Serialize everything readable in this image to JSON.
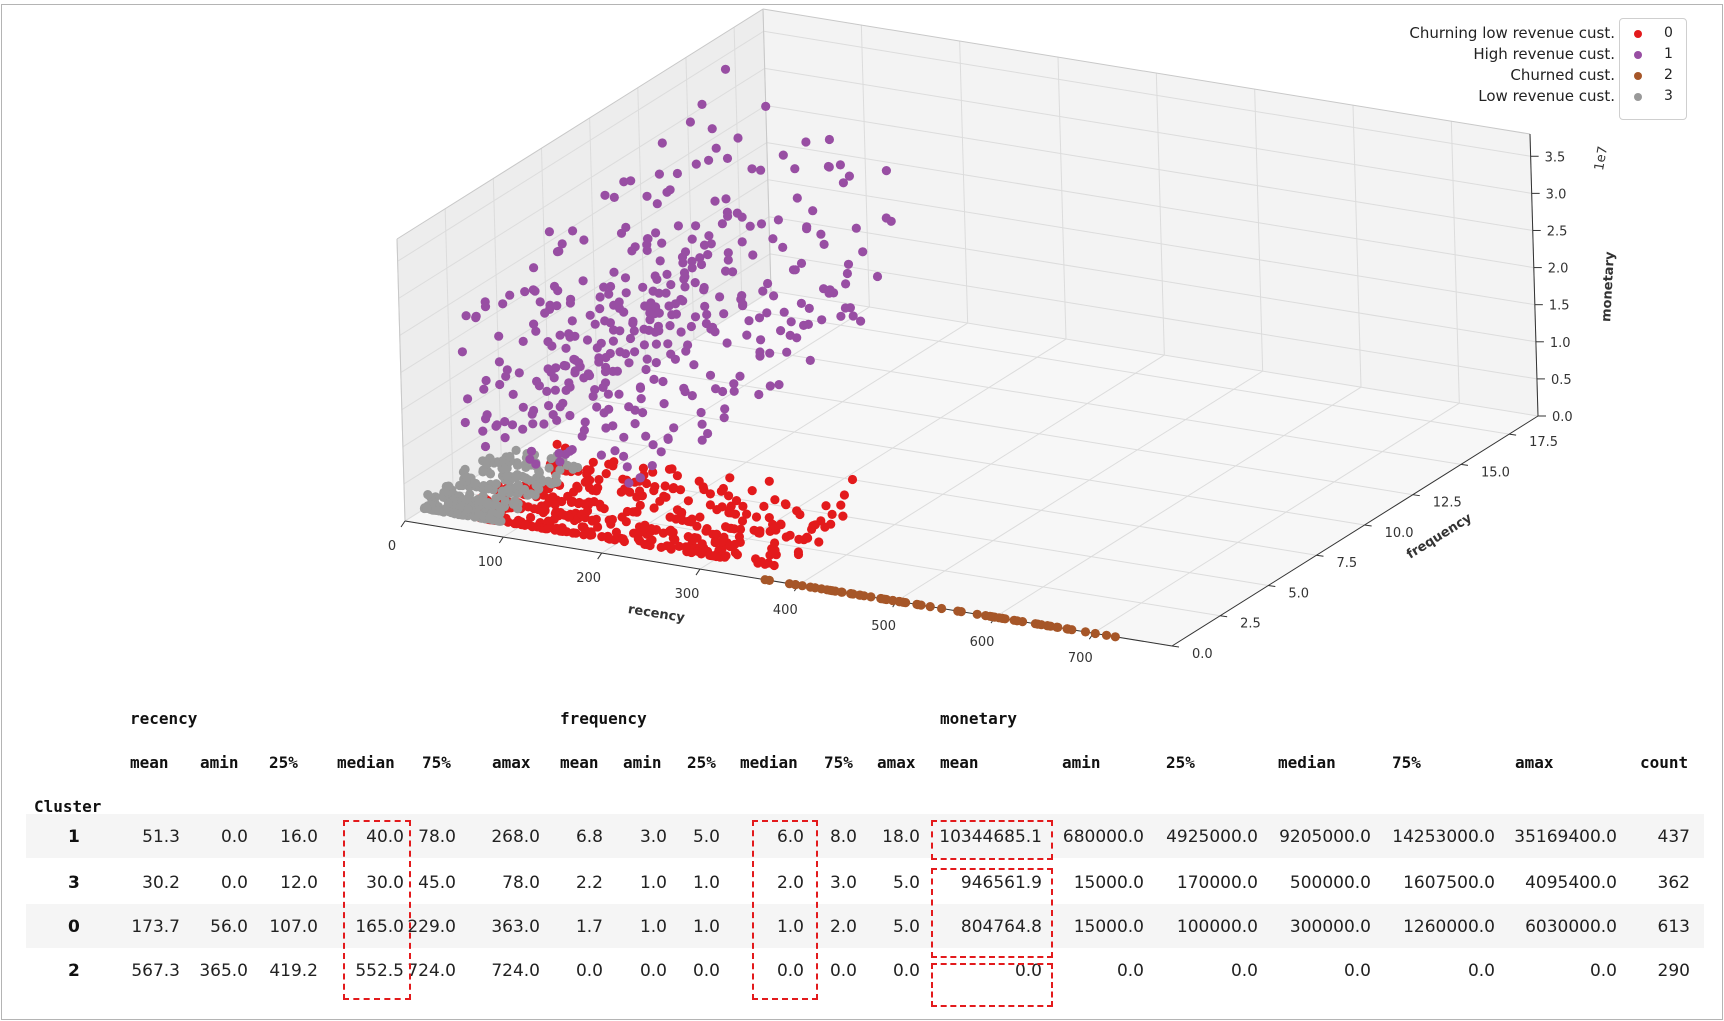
{
  "chart_data": {
    "type": "scatter",
    "projection": "3d",
    "axes": {
      "x": {
        "label": "recency",
        "ticks": [
          "0",
          "100",
          "200",
          "300",
          "400",
          "500",
          "600",
          "700"
        ],
        "range": [
          0,
          780
        ]
      },
      "y": {
        "label": "frequency",
        "ticks": [
          "0.0",
          "2.5",
          "5.0",
          "7.5",
          "10.0",
          "12.5",
          "15.0",
          "17.5"
        ],
        "range": [
          0,
          19
        ]
      },
      "z": {
        "label": "monetary",
        "ticks": [
          "0.0",
          "0.5",
          "1.0",
          "1.5",
          "2.0",
          "2.5",
          "3.0",
          "3.5"
        ],
        "range": [
          0,
          3.8
        ],
        "offset_text": "1e7"
      }
    },
    "grid": true,
    "legend_position": "top-right",
    "series": [
      {
        "code": "0",
        "name": "Churning low revenue cust.",
        "color": "#e31a1c",
        "recency": [
          56,
          363
        ],
        "frequency": [
          1,
          5
        ],
        "monetary": [
          0.0015,
          0.603
        ]
      },
      {
        "code": "1",
        "name": "High revenue cust.",
        "color": "#984ea3",
        "recency": [
          0,
          268
        ],
        "frequency": [
          3,
          18
        ],
        "monetary": [
          0.068,
          3.517
        ]
      },
      {
        "code": "2",
        "name": "Churned cust.",
        "color": "#a65628",
        "recency": [
          365,
          724
        ],
        "frequency": [
          0,
          0
        ],
        "monetary": [
          0,
          0
        ]
      },
      {
        "code": "3",
        "name": "Low revenue cust.",
        "color": "#999999",
        "recency": [
          0,
          78
        ],
        "frequency": [
          1,
          5
        ],
        "monetary": [
          0.0015,
          0.4095
        ]
      }
    ]
  },
  "table": {
    "groups": [
      "recency",
      "frequency",
      "monetary"
    ],
    "columns": [
      "mean",
      "amin",
      "25%",
      "median",
      "75%",
      "amax",
      "mean",
      "amin",
      "25%",
      "median",
      "75%",
      "amax",
      "mean",
      "amin",
      "25%",
      "median",
      "75%",
      "amax",
      "count"
    ],
    "index_name": "Cluster",
    "rows": [
      {
        "cluster": "1",
        "values": [
          "51.3",
          "0.0",
          "16.0",
          "40.0",
          "78.0",
          "268.0",
          "6.8",
          "3.0",
          "5.0",
          "6.0",
          "8.0",
          "18.0",
          "10344685.1",
          "680000.0",
          "4925000.0",
          "9205000.0",
          "14253000.0",
          "35169400.0",
          "437"
        ]
      },
      {
        "cluster": "3",
        "values": [
          "30.2",
          "0.0",
          "12.0",
          "30.0",
          "45.0",
          "78.0",
          "2.2",
          "1.0",
          "1.0",
          "2.0",
          "3.0",
          "5.0",
          "946561.9",
          "15000.0",
          "170000.0",
          "500000.0",
          "1607500.0",
          "4095400.0",
          "362"
        ]
      },
      {
        "cluster": "0",
        "values": [
          "173.7",
          "56.0",
          "107.0",
          "165.0",
          "229.0",
          "363.0",
          "1.7",
          "1.0",
          "1.0",
          "1.0",
          "2.0",
          "5.0",
          "804764.8",
          "15000.0",
          "100000.0",
          "300000.0",
          "1260000.0",
          "6030000.0",
          "613"
        ]
      },
      {
        "cluster": "2",
        "values": [
          "567.3",
          "365.0",
          "419.2",
          "552.5",
          "724.0",
          "724.0",
          "0.0",
          "0.0",
          "0.0",
          "0.0",
          "0.0",
          "0.0",
          "0.0",
          "0.0",
          "0.0",
          "0.0",
          "0.0",
          "0.0",
          "290"
        ]
      }
    ],
    "highlight_color": "#e31a1c"
  }
}
